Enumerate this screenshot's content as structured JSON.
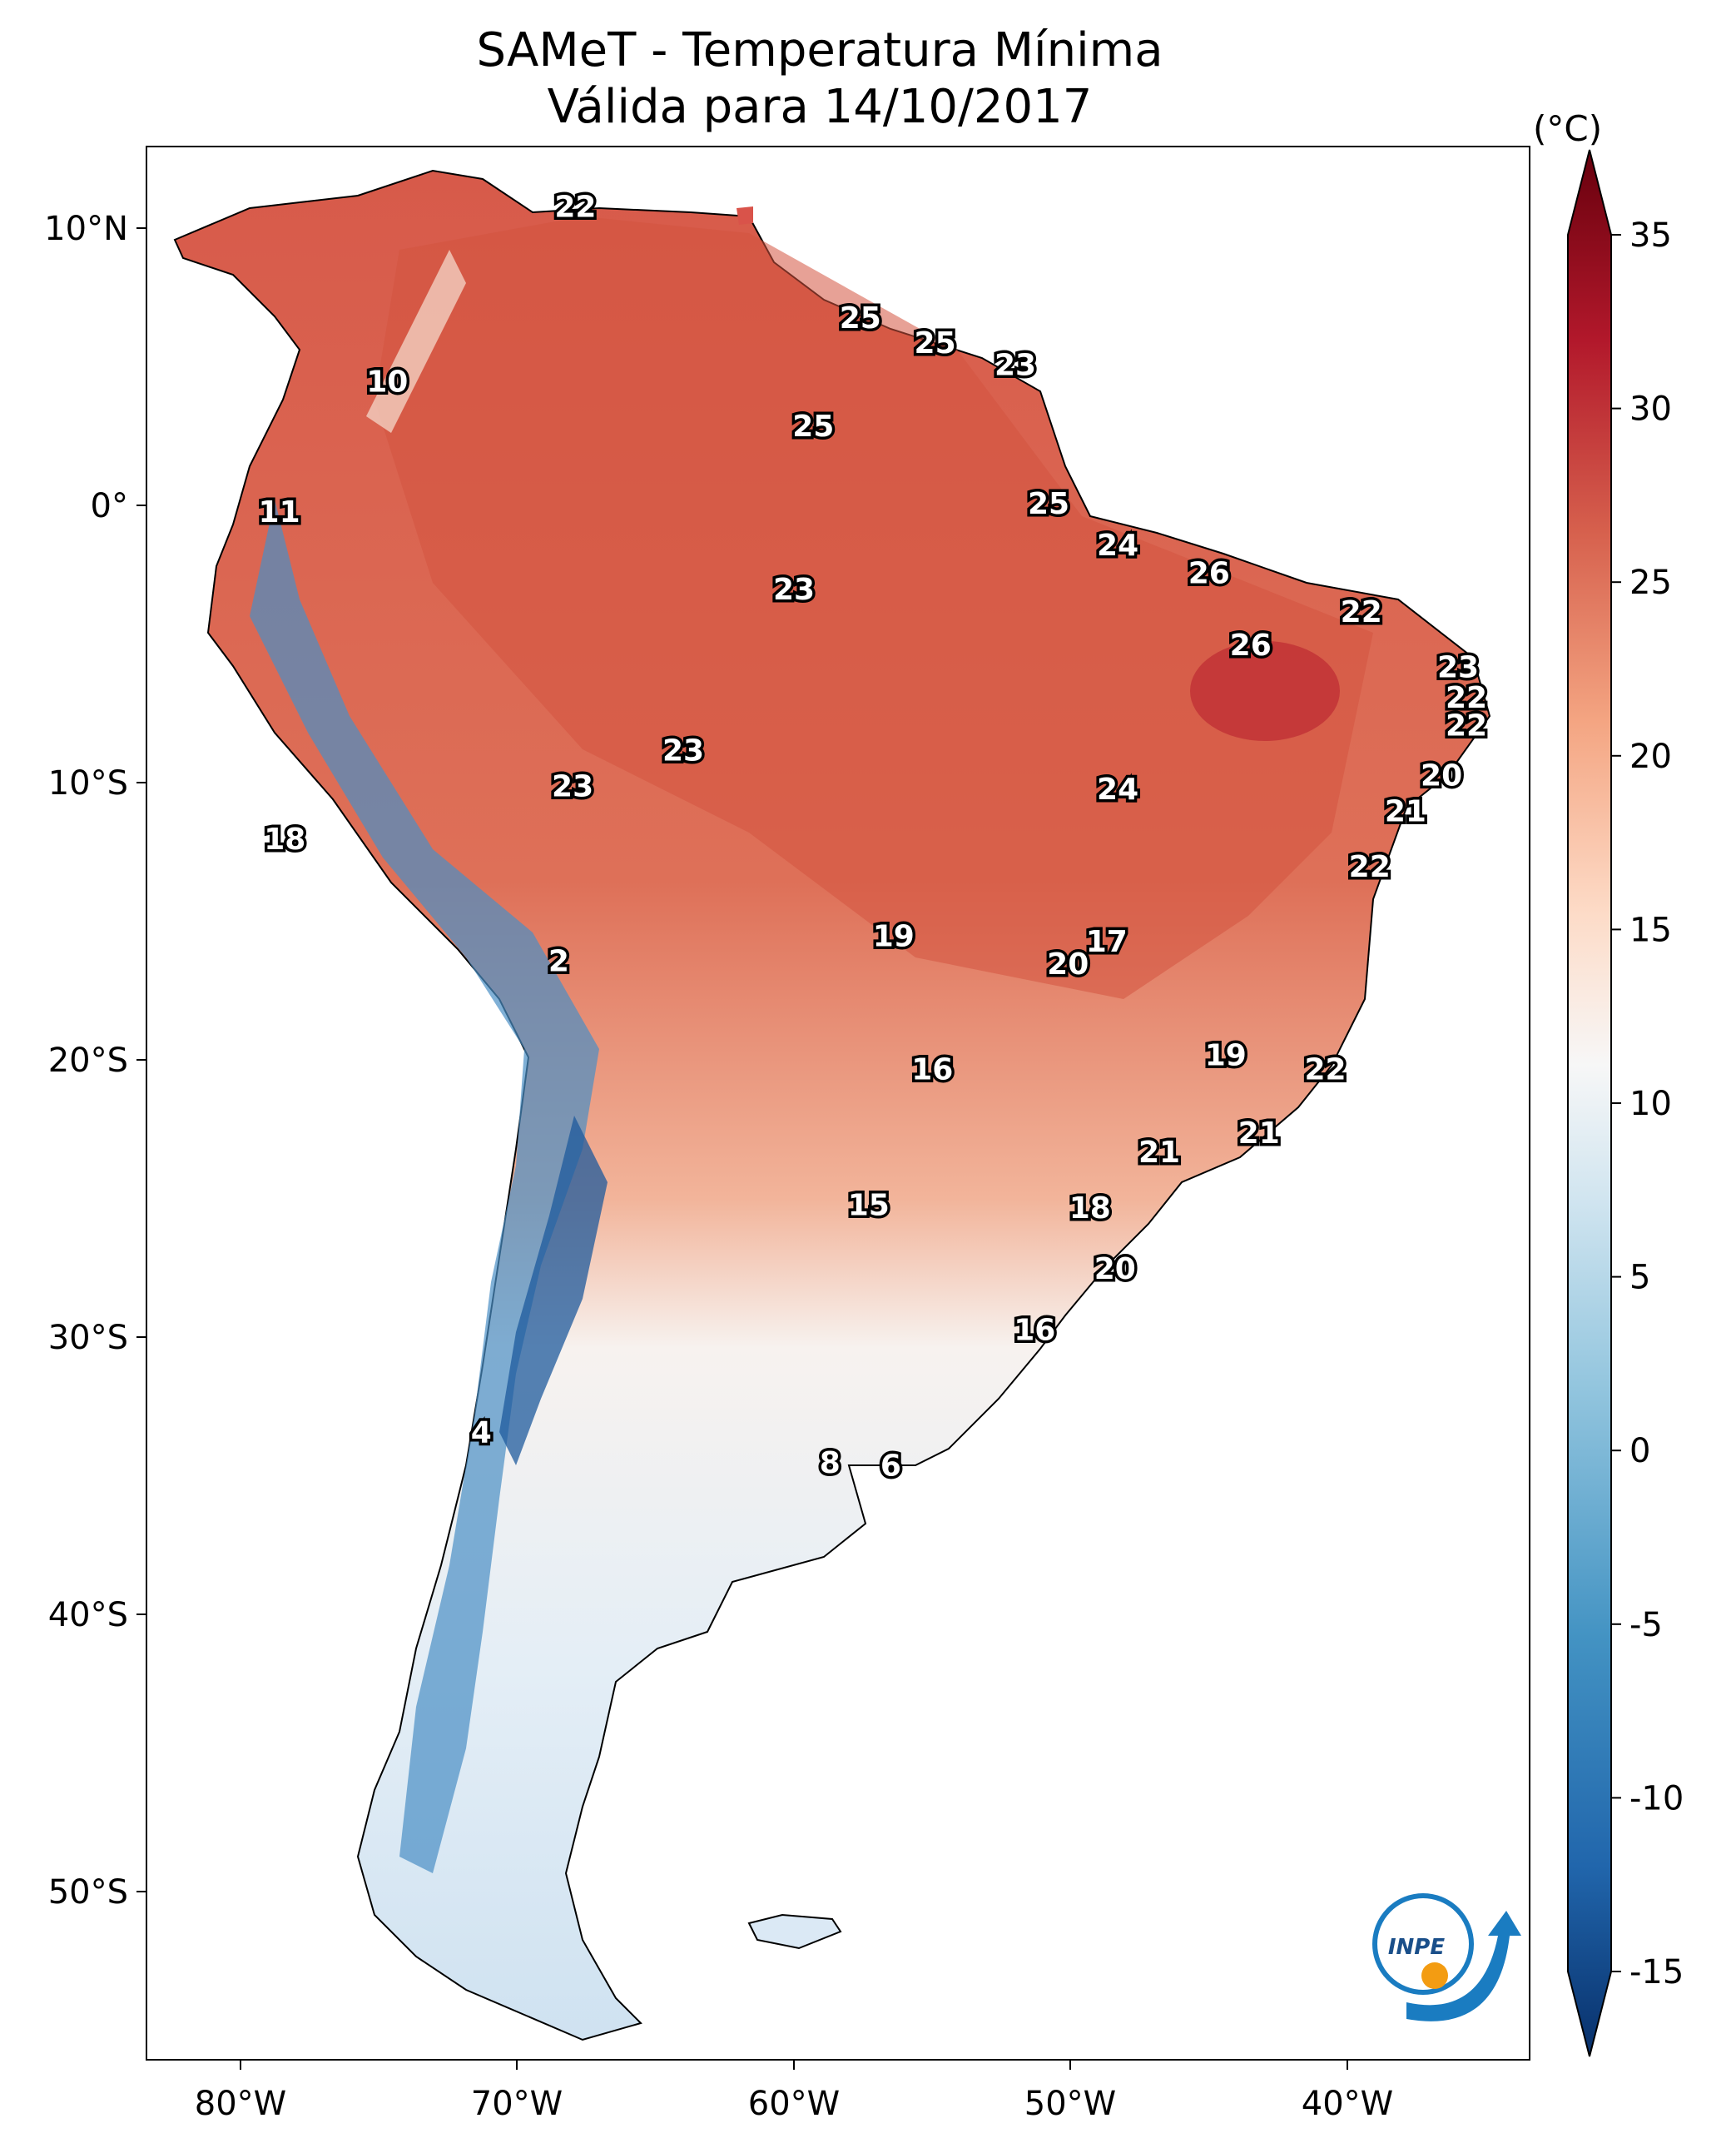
{
  "title": {
    "line1": "SAMeT - Temperatura Mínima",
    "line2": "Válida para 14/10/2017"
  },
  "colorbar": {
    "unit": "(°C)",
    "ticks": [
      "35",
      "30",
      "25",
      "20",
      "15",
      "10",
      "5",
      "0",
      "-5",
      "-10",
      "-15"
    ],
    "range": [
      -15,
      35
    ],
    "colors": {
      "low": "#08306b",
      "mid": "#f7f7f7",
      "high": "#67000d"
    }
  },
  "axes": {
    "lon_ticks": [
      "80°W",
      "70°W",
      "60°W",
      "50°W",
      "40°W"
    ],
    "lat_ticks": [
      "10°N",
      "0°",
      "10°S",
      "20°S",
      "30°S",
      "40°S",
      "50°S"
    ],
    "lon_range": [
      -83,
      -33
    ],
    "lat_range": [
      -56,
      13
    ]
  },
  "logo": {
    "text": "INPE"
  },
  "chart_data": {
    "type": "heatmap",
    "value_labels": [
      {
        "lon": -67.5,
        "lat": 10.7,
        "value": "22"
      },
      {
        "lon": -57.2,
        "lat": 6.7,
        "value": "25"
      },
      {
        "lon": -54.5,
        "lat": 5.8,
        "value": "25"
      },
      {
        "lon": -51.6,
        "lat": 5.0,
        "value": "23"
      },
      {
        "lon": -74.3,
        "lat": 4.4,
        "value": "10"
      },
      {
        "lon": -58.9,
        "lat": 2.8,
        "value": "25"
      },
      {
        "lon": -50.4,
        "lat": 0.0,
        "value": "25"
      },
      {
        "lon": -78.2,
        "lat": -0.3,
        "value": "11"
      },
      {
        "lon": -47.9,
        "lat": -1.5,
        "value": "24"
      },
      {
        "lon": -44.6,
        "lat": -2.5,
        "value": "26"
      },
      {
        "lon": -39.1,
        "lat": -3.9,
        "value": "22"
      },
      {
        "lon": -59.6,
        "lat": -3.1,
        "value": "23"
      },
      {
        "lon": -43.1,
        "lat": -5.1,
        "value": "26"
      },
      {
        "lon": -35.6,
        "lat": -5.9,
        "value": "23"
      },
      {
        "lon": -35.3,
        "lat": -7.0,
        "value": "22"
      },
      {
        "lon": -35.3,
        "lat": -8.0,
        "value": "22"
      },
      {
        "lon": -63.6,
        "lat": -8.9,
        "value": "23"
      },
      {
        "lon": -67.6,
        "lat": -10.2,
        "value": "23"
      },
      {
        "lon": -36.2,
        "lat": -9.8,
        "value": "20"
      },
      {
        "lon": -47.9,
        "lat": -10.3,
        "value": "24"
      },
      {
        "lon": -37.5,
        "lat": -11.1,
        "value": "21"
      },
      {
        "lon": -78.0,
        "lat": -12.1,
        "value": "18"
      },
      {
        "lon": -38.8,
        "lat": -13.1,
        "value": "22"
      },
      {
        "lon": -56.0,
        "lat": -15.6,
        "value": "19"
      },
      {
        "lon": -48.3,
        "lat": -15.8,
        "value": "17"
      },
      {
        "lon": -49.7,
        "lat": -16.6,
        "value": "20"
      },
      {
        "lon": -68.1,
        "lat": -16.5,
        "value": "2"
      },
      {
        "lon": -44.0,
        "lat": -19.9,
        "value": "19"
      },
      {
        "lon": -54.6,
        "lat": -20.4,
        "value": "16"
      },
      {
        "lon": -40.4,
        "lat": -20.4,
        "value": "22"
      },
      {
        "lon": -42.8,
        "lat": -22.7,
        "value": "21"
      },
      {
        "lon": -46.4,
        "lat": -23.4,
        "value": "21"
      },
      {
        "lon": -56.9,
        "lat": -25.3,
        "value": "15"
      },
      {
        "lon": -48.9,
        "lat": -25.4,
        "value": "18"
      },
      {
        "lon": -48.0,
        "lat": -27.6,
        "value": "20"
      },
      {
        "lon": -50.9,
        "lat": -29.8,
        "value": "16"
      },
      {
        "lon": -70.9,
        "lat": -33.5,
        "value": "4"
      },
      {
        "lon": -58.3,
        "lat": -34.6,
        "value": "8"
      },
      {
        "lon": -56.1,
        "lat": -34.7,
        "value": "6"
      }
    ]
  }
}
